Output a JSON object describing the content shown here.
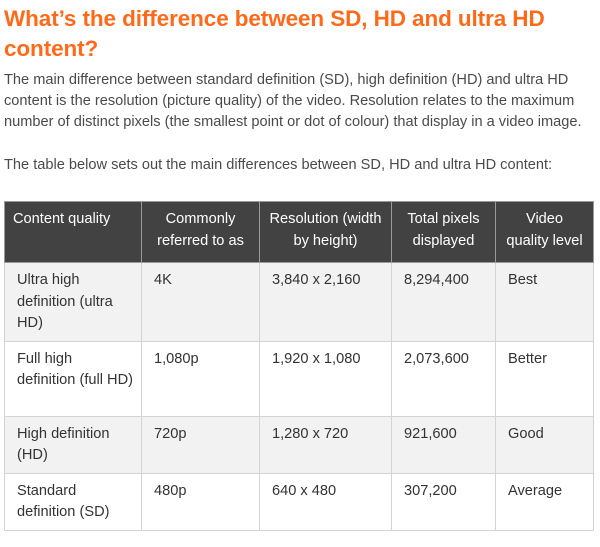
{
  "heading": "What’s the difference between SD, HD and ultra HD content?",
  "intro": "The main difference between standard definition (SD), high definition (HD) and ultra HD content is the resolution (picture quality) of the video. Resolution relates to the maximum number of distinct pixels (the smallest point or dot of colour) that display in a video image.",
  "lead": "The table below sets out the main differences between SD, HD and ultra HD content:",
  "colors": {
    "heading": "#ff6a1a",
    "header_bg": "#424242",
    "row_shade": "#f2f2f2",
    "border": "#d4d4d4"
  },
  "table": {
    "headers": [
      "Content quality",
      "Commonly referred to as",
      "Resolution (width by height)",
      "Total pixels displayed",
      "Video quality level"
    ],
    "rows": [
      [
        "Ultra high definition (ultra HD)",
        "4K",
        "3,840 x 2,160",
        "8,294,400",
        "Best"
      ],
      [
        "Full high definition (full HD)",
        "1,080p",
        "1,920 x 1,080",
        "2,073,600",
        "Better"
      ],
      [
        "High definition (HD)",
        "720p",
        "1,280 x 720",
        "921,600",
        "Good"
      ],
      [
        "Standard definition (SD)",
        "480p",
        "640 x 480",
        "307,200",
        "Average"
      ]
    ]
  }
}
